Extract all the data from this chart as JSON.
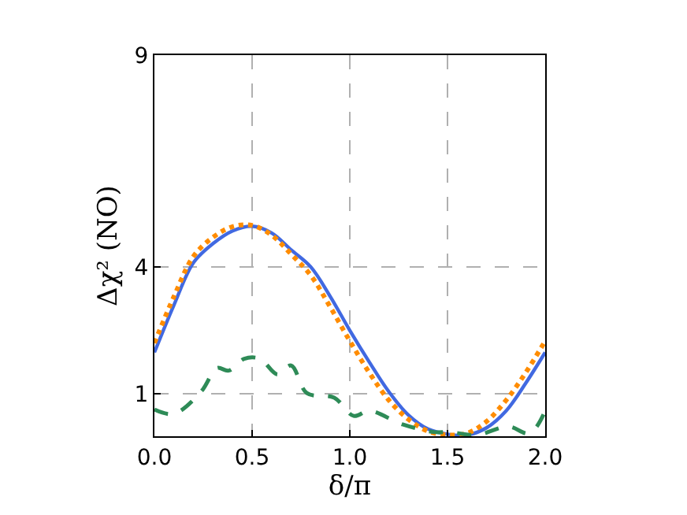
{
  "chart_data": {
    "type": "line",
    "xlabel": "δ/π",
    "ylabel": "Δχ² (NO)",
    "xlim": [
      0,
      2
    ],
    "ylim": [
      0,
      9
    ],
    "xticks": [
      {
        "value": 0,
        "label": "0.0"
      },
      {
        "value": 0.5,
        "label": "0.5"
      },
      {
        "value": 1,
        "label": "1.0"
      },
      {
        "value": 1.5,
        "label": "1.5"
      },
      {
        "value": 2,
        "label": "2.0"
      }
    ],
    "yticks": [
      1,
      4,
      9
    ],
    "grid": true,
    "series": [
      {
        "color": "#4169e1",
        "line_style": "solid",
        "x": [
          0,
          0.1,
          0.2,
          0.3,
          0.4,
          0.5,
          0.6,
          0.7,
          0.8,
          0.9,
          1.0,
          1.1,
          1.2,
          1.3,
          1.4,
          1.5,
          1.6,
          1.7,
          1.8,
          1.9,
          2.0
        ],
        "values": [
          1.98,
          3.1,
          4.1,
          4.55,
          4.85,
          4.96,
          4.8,
          4.4,
          4.0,
          3.3,
          2.5,
          1.75,
          1.05,
          0.5,
          0.17,
          0.05,
          0.03,
          0.2,
          0.6,
          1.25,
          1.98
        ]
      },
      {
        "color": "#ff8c00",
        "line_style": "dotted",
        "x": [
          0,
          0.1,
          0.2,
          0.3,
          0.4,
          0.5,
          0.6,
          0.7,
          0.8,
          0.9,
          1.0,
          1.1,
          1.2,
          1.3,
          1.4,
          1.5,
          1.6,
          1.7,
          1.8,
          1.9,
          2.0
        ],
        "values": [
          2.2,
          3.3,
          4.25,
          4.7,
          4.95,
          4.98,
          4.75,
          4.3,
          3.8,
          3.05,
          2.25,
          1.5,
          0.85,
          0.4,
          0.12,
          0.03,
          0.07,
          0.35,
          0.85,
          1.5,
          2.25
        ]
      },
      {
        "color": "#2e8b57",
        "line_style": "dashed",
        "x": [
          0,
          0.1,
          0.24,
          0.32,
          0.38,
          0.46,
          0.54,
          0.63,
          0.7,
          0.78,
          0.92,
          1.02,
          1.1,
          1.27,
          1.43,
          1.51,
          1.65,
          1.81,
          1.92,
          2.0
        ],
        "values": [
          0.63,
          0.53,
          1.06,
          1.61,
          1.55,
          1.83,
          1.83,
          1.46,
          1.67,
          1.02,
          0.91,
          0.48,
          0.6,
          0.28,
          0.1,
          0.1,
          0.03,
          0.23,
          0.07,
          0.6
        ]
      }
    ]
  }
}
